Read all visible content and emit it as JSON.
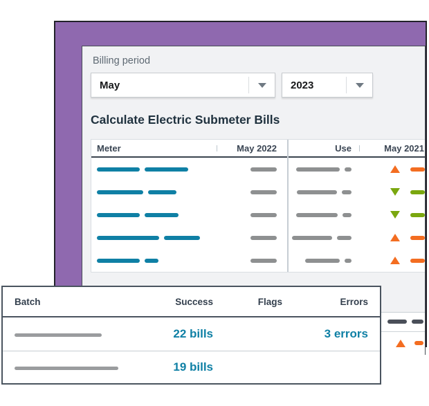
{
  "billing": {
    "label": "Billing period",
    "month_value": "May",
    "year_value": "2023"
  },
  "section_title": "Calculate Electric Submeter Bills",
  "main_table": {
    "columns": [
      "Meter",
      "May 2022",
      "Use",
      "May 2021"
    ],
    "rows": [
      {
        "meter_bars": [
          62,
          63
        ],
        "may2022_bar": 38,
        "use_bars": [
          63,
          10
        ],
        "trend": "up",
        "may2021_bar": 21
      },
      {
        "meter_bars": [
          67,
          41
        ],
        "may2022_bar": 38,
        "use_bars": [
          58,
          14
        ],
        "trend": "down",
        "may2021_bar": 21
      },
      {
        "meter_bars": [
          62,
          49
        ],
        "may2022_bar": 38,
        "use_bars": [
          60,
          13
        ],
        "trend": "down",
        "may2021_bar": 21
      },
      {
        "meter_bars": [
          90,
          52
        ],
        "may2022_bar": 38,
        "use_bars": [
          58,
          21
        ],
        "trend": "up",
        "may2021_bar": 21
      },
      {
        "meter_bars": [
          62,
          20
        ],
        "may2022_bar": 38,
        "use_bars": [
          50,
          10
        ],
        "trend": "up",
        "may2021_bar": 21
      }
    ]
  },
  "secondary_table": {
    "rows": [
      {
        "type": "dashes",
        "dash_bars": [
          28,
          17
        ]
      },
      {
        "type": "trend",
        "trend": "up",
        "bar": 13
      }
    ]
  },
  "batch_panel": {
    "columns": [
      "Batch",
      "Success",
      "Flags",
      "Errors"
    ],
    "rows": [
      {
        "batch_bar": 126,
        "success": "22 bills",
        "flags": "",
        "errors": "3 errors"
      },
      {
        "batch_bar": 150,
        "success": "19 bills",
        "flags": "",
        "errors": ""
      }
    ]
  },
  "colors": {
    "purple": "#8F69AF",
    "navy": "#20323F",
    "teal": "#0F80A5",
    "gray_bar": "#8E9091",
    "dark_bar": "#4A4F59",
    "orange": "#F36D21",
    "green": "#7AA70F"
  }
}
